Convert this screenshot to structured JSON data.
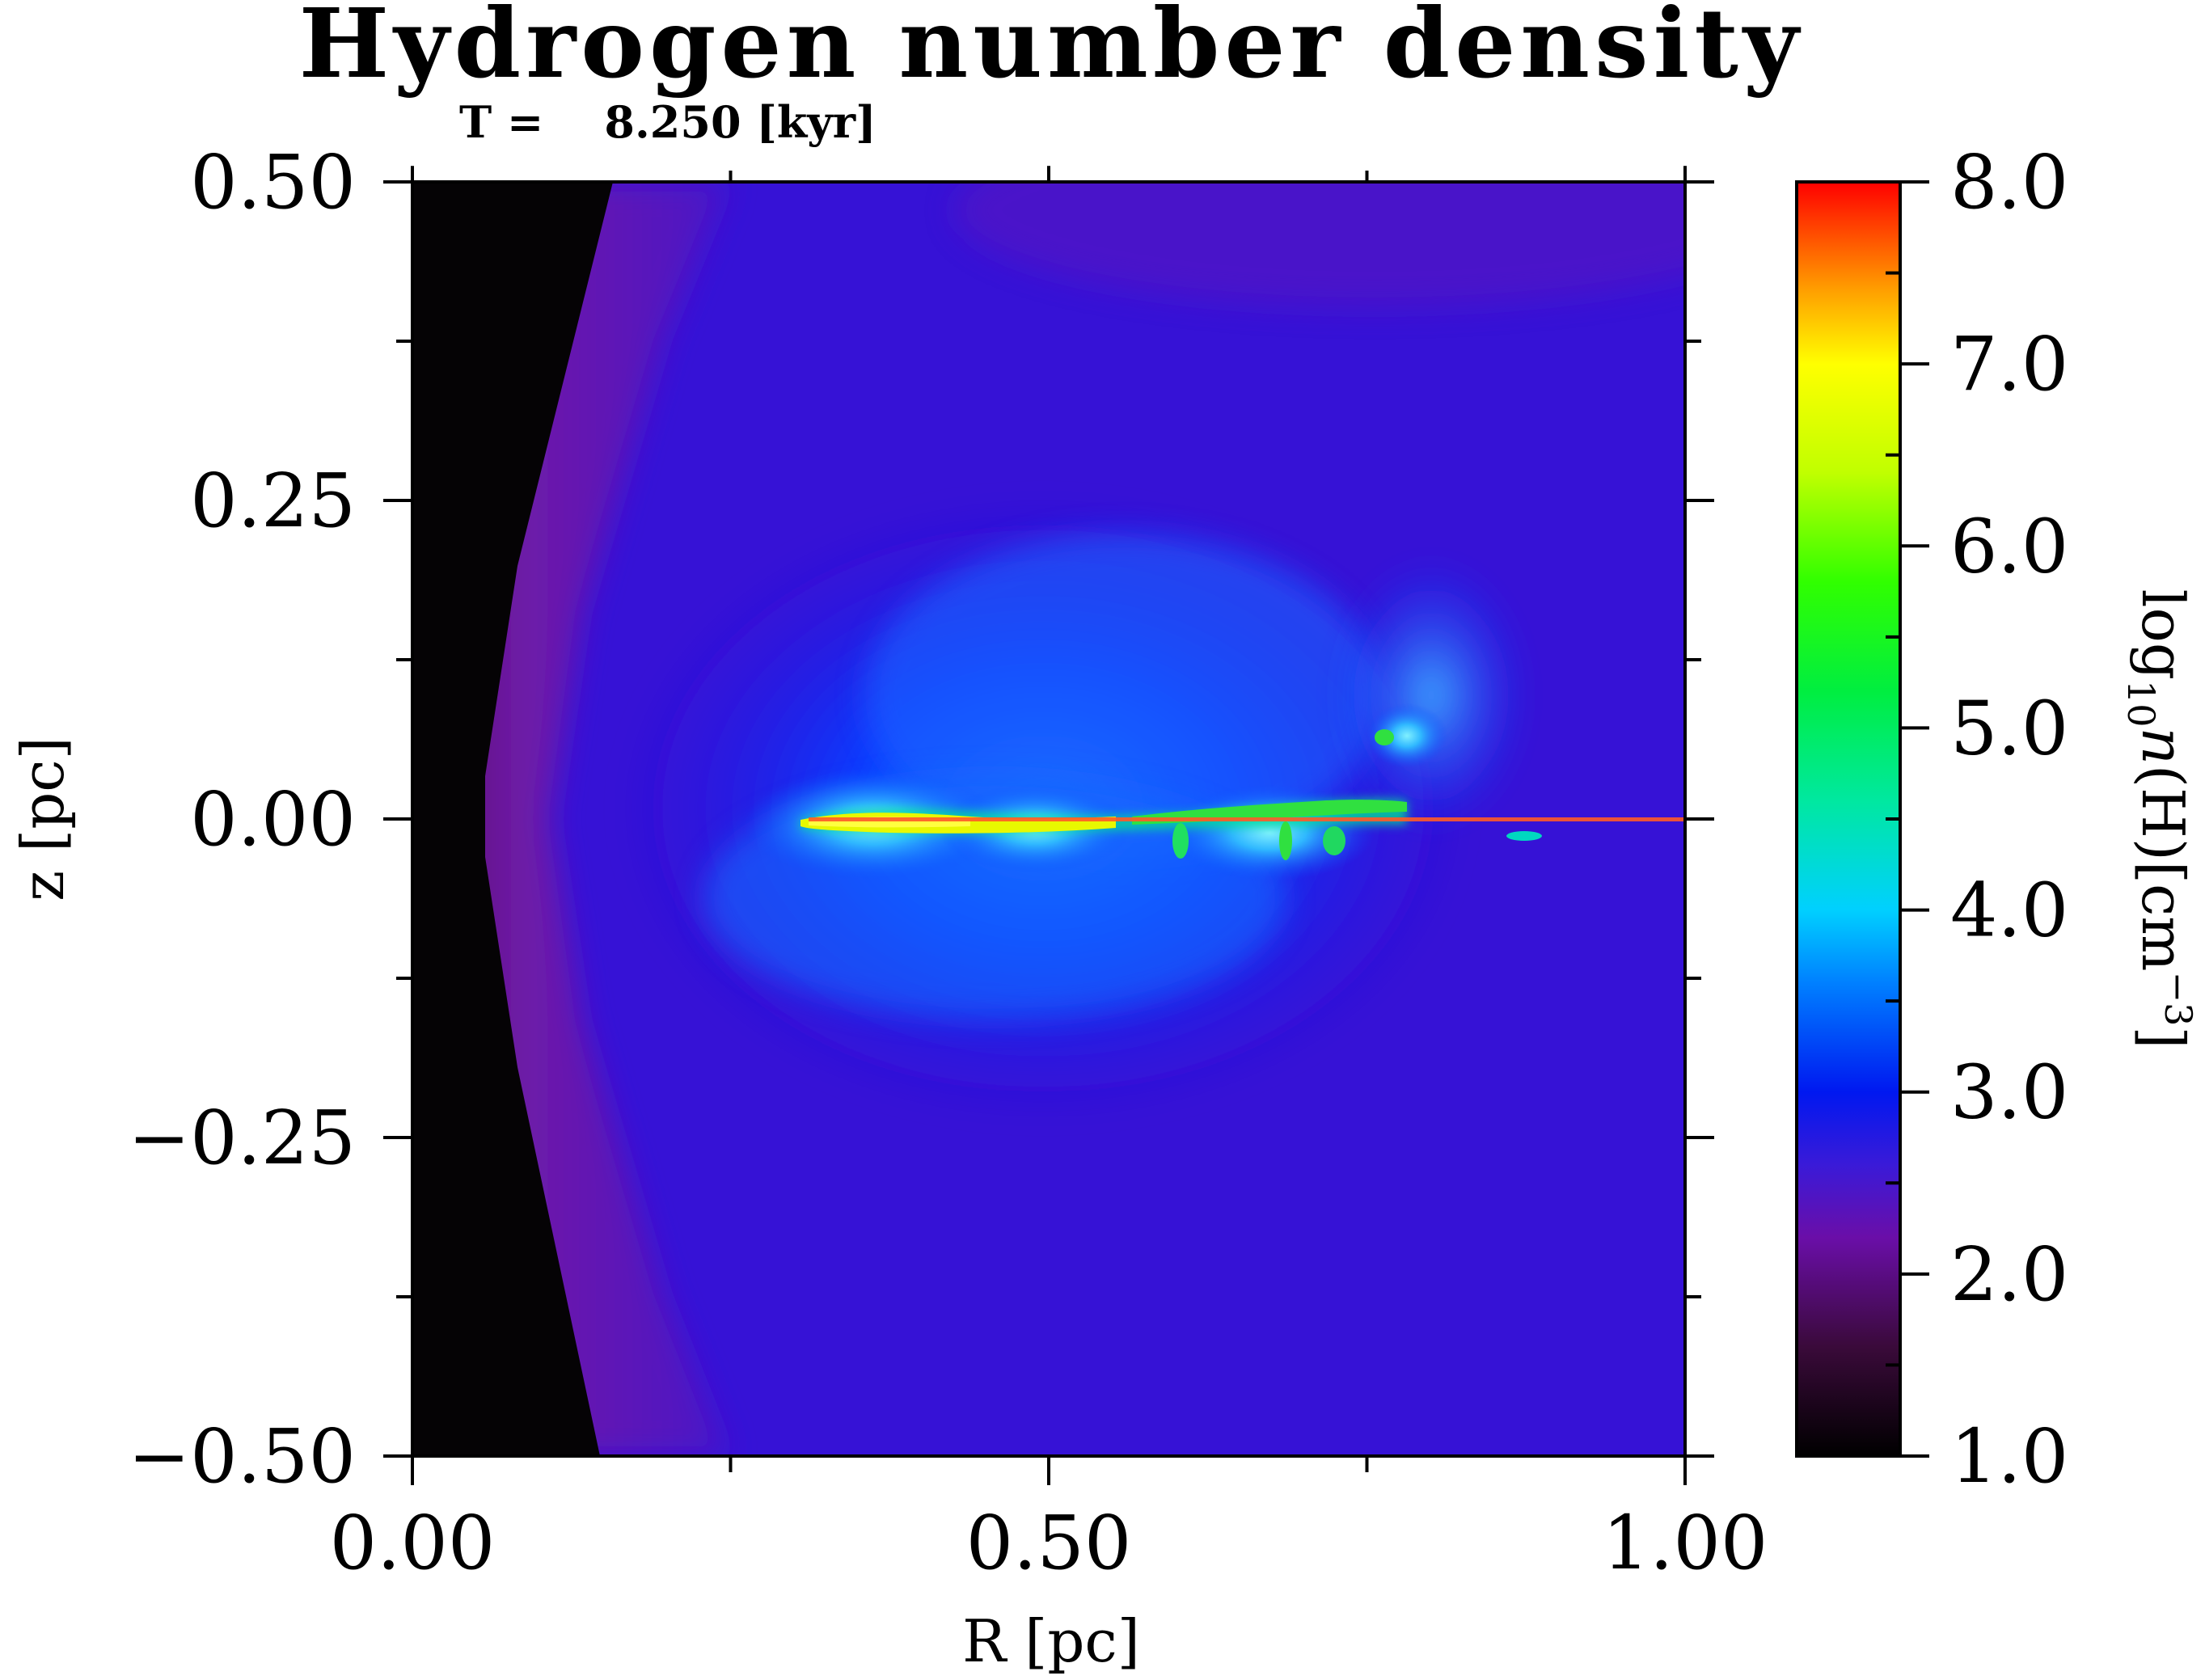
{
  "chart_data": {
    "type": "heatmap",
    "title": "Hydrogen number density",
    "subtitle": "T =    8.250 [kyr]",
    "xlabel": "R [pc]",
    "ylabel": "z [pc]",
    "xlim": [
      0.0,
      1.0
    ],
    "ylim": [
      -0.5,
      0.5
    ],
    "xticks": [
      0.0,
      0.5,
      1.0
    ],
    "xtick_labels": [
      "0.00",
      "0.50",
      "1.00"
    ],
    "x_minor_ticks": [
      0.25,
      0.75
    ],
    "yticks": [
      -0.5,
      -0.25,
      0.0,
      0.25,
      0.5
    ],
    "ytick_labels": [
      "−0.50",
      "−0.25",
      "0.00",
      "0.25",
      "0.50"
    ],
    "y_minor_ticks": [
      -0.375,
      -0.125,
      0.125,
      0.375
    ],
    "colorbar": {
      "label_prefix": "log",
      "label_sub": "10",
      "label_var": "n",
      "label_rest": "(H)[cm",
      "label_sup": "−3",
      "label_end": "]",
      "range": [
        1.0,
        8.0
      ],
      "ticks": [
        1.0,
        2.0,
        3.0,
        4.0,
        5.0,
        6.0,
        7.0,
        8.0
      ],
      "tick_labels": [
        "1.0",
        "2.0",
        "3.0",
        "4.0",
        "5.0",
        "6.0",
        "7.0",
        "8.0"
      ],
      "minor_ticks": [
        1.5,
        2.5,
        3.5,
        4.5,
        5.5,
        6.5,
        7.5
      ],
      "colormap": "rainbow",
      "color_stops": [
        {
          "value": 1.0,
          "color": "#000000"
        },
        {
          "value": 1.6,
          "color": "#3a0a3a"
        },
        {
          "value": 2.2,
          "color": "#6a0ea8"
        },
        {
          "value": 2.6,
          "color": "#3a1ad8"
        },
        {
          "value": 3.0,
          "color": "#0018f0"
        },
        {
          "value": 3.6,
          "color": "#0080ff"
        },
        {
          "value": 4.0,
          "color": "#00d0ff"
        },
        {
          "value": 4.6,
          "color": "#00e8a0"
        },
        {
          "value": 5.2,
          "color": "#00ee40"
        },
        {
          "value": 5.8,
          "color": "#30ff00"
        },
        {
          "value": 6.4,
          "color": "#c0ff00"
        },
        {
          "value": 7.0,
          "color": "#ffff00"
        },
        {
          "value": 7.4,
          "color": "#ffa000"
        },
        {
          "value": 8.0,
          "color": "#ff0000"
        }
      ]
    },
    "field_colors": {
      "void": "#050305",
      "shell": "#6e1aa8",
      "ambient": "#3612d6",
      "cloud": "#0a3cff",
      "core": "#30c8ff",
      "dense": "#c8f000",
      "peak": "#ffff20",
      "midplane_line": "#ff5a28"
    }
  }
}
